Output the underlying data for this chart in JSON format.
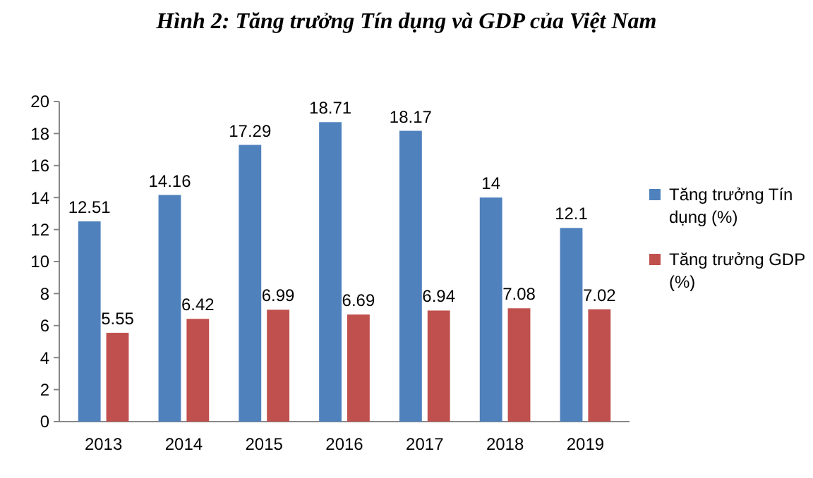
{
  "chart_data": {
    "type": "bar",
    "title": "Hình 2: Tăng trưởng Tín dụng và GDP của Việt Nam",
    "categories": [
      "2013",
      "2014",
      "2015",
      "2016",
      "2017",
      "2018",
      "2019"
    ],
    "series": [
      {
        "name": "Tăng trưởng Tín dụng (%)",
        "color": "#4f81bd",
        "values": [
          12.51,
          14.16,
          17.29,
          18.71,
          18.17,
          14,
          12.1
        ]
      },
      {
        "name": "Tăng trưởng GDP (%)",
        "color": "#c0504d",
        "values": [
          5.55,
          6.42,
          6.99,
          6.69,
          6.94,
          7.08,
          7.02
        ]
      }
    ],
    "ylim": [
      0,
      20
    ],
    "yticks": [
      0,
      2,
      4,
      6,
      8,
      10,
      12,
      14,
      16,
      18,
      20
    ],
    "grid": false,
    "legend": "right",
    "data_labels": true
  }
}
